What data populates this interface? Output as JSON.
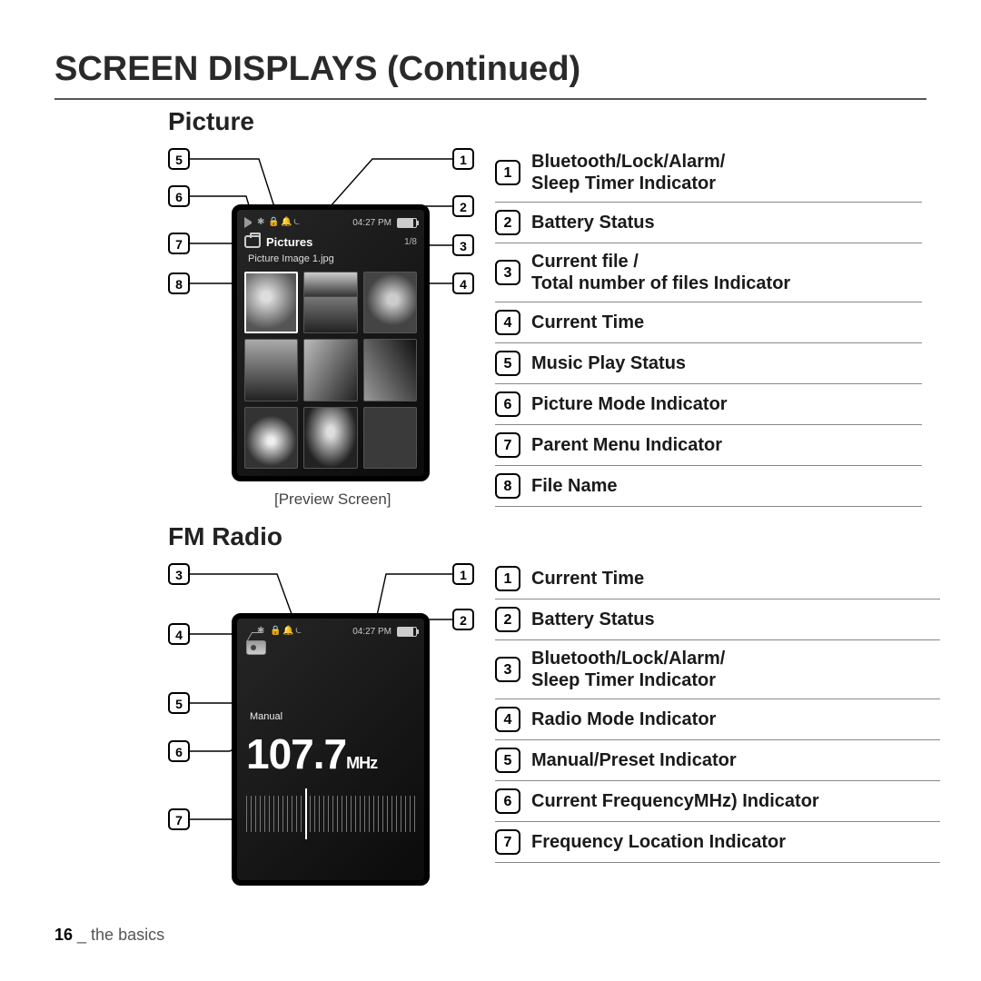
{
  "page": {
    "title": "SCREEN DISPLAYS (Continued)",
    "footer_page": "16",
    "footer_sep": " _ ",
    "footer_section": "the basics"
  },
  "picture": {
    "heading": "Picture",
    "caption": "[Preview Screen]",
    "device": {
      "time": "04:27 PM",
      "title": "Pictures",
      "count": "1/8",
      "filename": "Picture Image 1.jpg",
      "battery_pct": 85
    },
    "callouts_left": [
      "5",
      "6",
      "7",
      "8"
    ],
    "callouts_right": [
      "1",
      "2",
      "3",
      "4"
    ],
    "legend": [
      {
        "n": "1",
        "t": "Bluetooth/Lock/Alarm/\nSleep Timer Indicator",
        "two": true
      },
      {
        "n": "2",
        "t": "Battery Status"
      },
      {
        "n": "3",
        "t": "Current file /\nTotal number of files Indicator",
        "two": true
      },
      {
        "n": "4",
        "t": "Current Time"
      },
      {
        "n": "5",
        "t": "Music Play Status"
      },
      {
        "n": "6",
        "t": "Picture Mode Indicator"
      },
      {
        "n": "7",
        "t": "Parent Menu Indicator"
      },
      {
        "n": "8",
        "t": "File Name"
      }
    ]
  },
  "fm": {
    "heading": "FM Radio",
    "device": {
      "time": "04:27 PM",
      "mode": "Manual",
      "freq": "107.7",
      "unit": "MHz",
      "battery_pct": 85
    },
    "callouts_left": [
      "3",
      "4",
      "5",
      "6",
      "7"
    ],
    "callouts_right": [
      "1",
      "2"
    ],
    "legend": [
      {
        "n": "1",
        "t": "Current Time"
      },
      {
        "n": "2",
        "t": "Battery Status"
      },
      {
        "n": "3",
        "t": "Bluetooth/Lock/Alarm/\nSleep Timer Indicator",
        "two": true
      },
      {
        "n": "4",
        "t": "Radio Mode Indicator"
      },
      {
        "n": "5",
        "t": "Manual/Preset Indicator"
      },
      {
        "n": "6",
        "t": "Current FrequencyMHz) Indicator"
      },
      {
        "n": "7",
        "t": "Frequency Location Indicator"
      }
    ]
  },
  "colors": {
    "rule": "#555555",
    "legend_rule": "#888888",
    "text": "#1a1a1a"
  }
}
